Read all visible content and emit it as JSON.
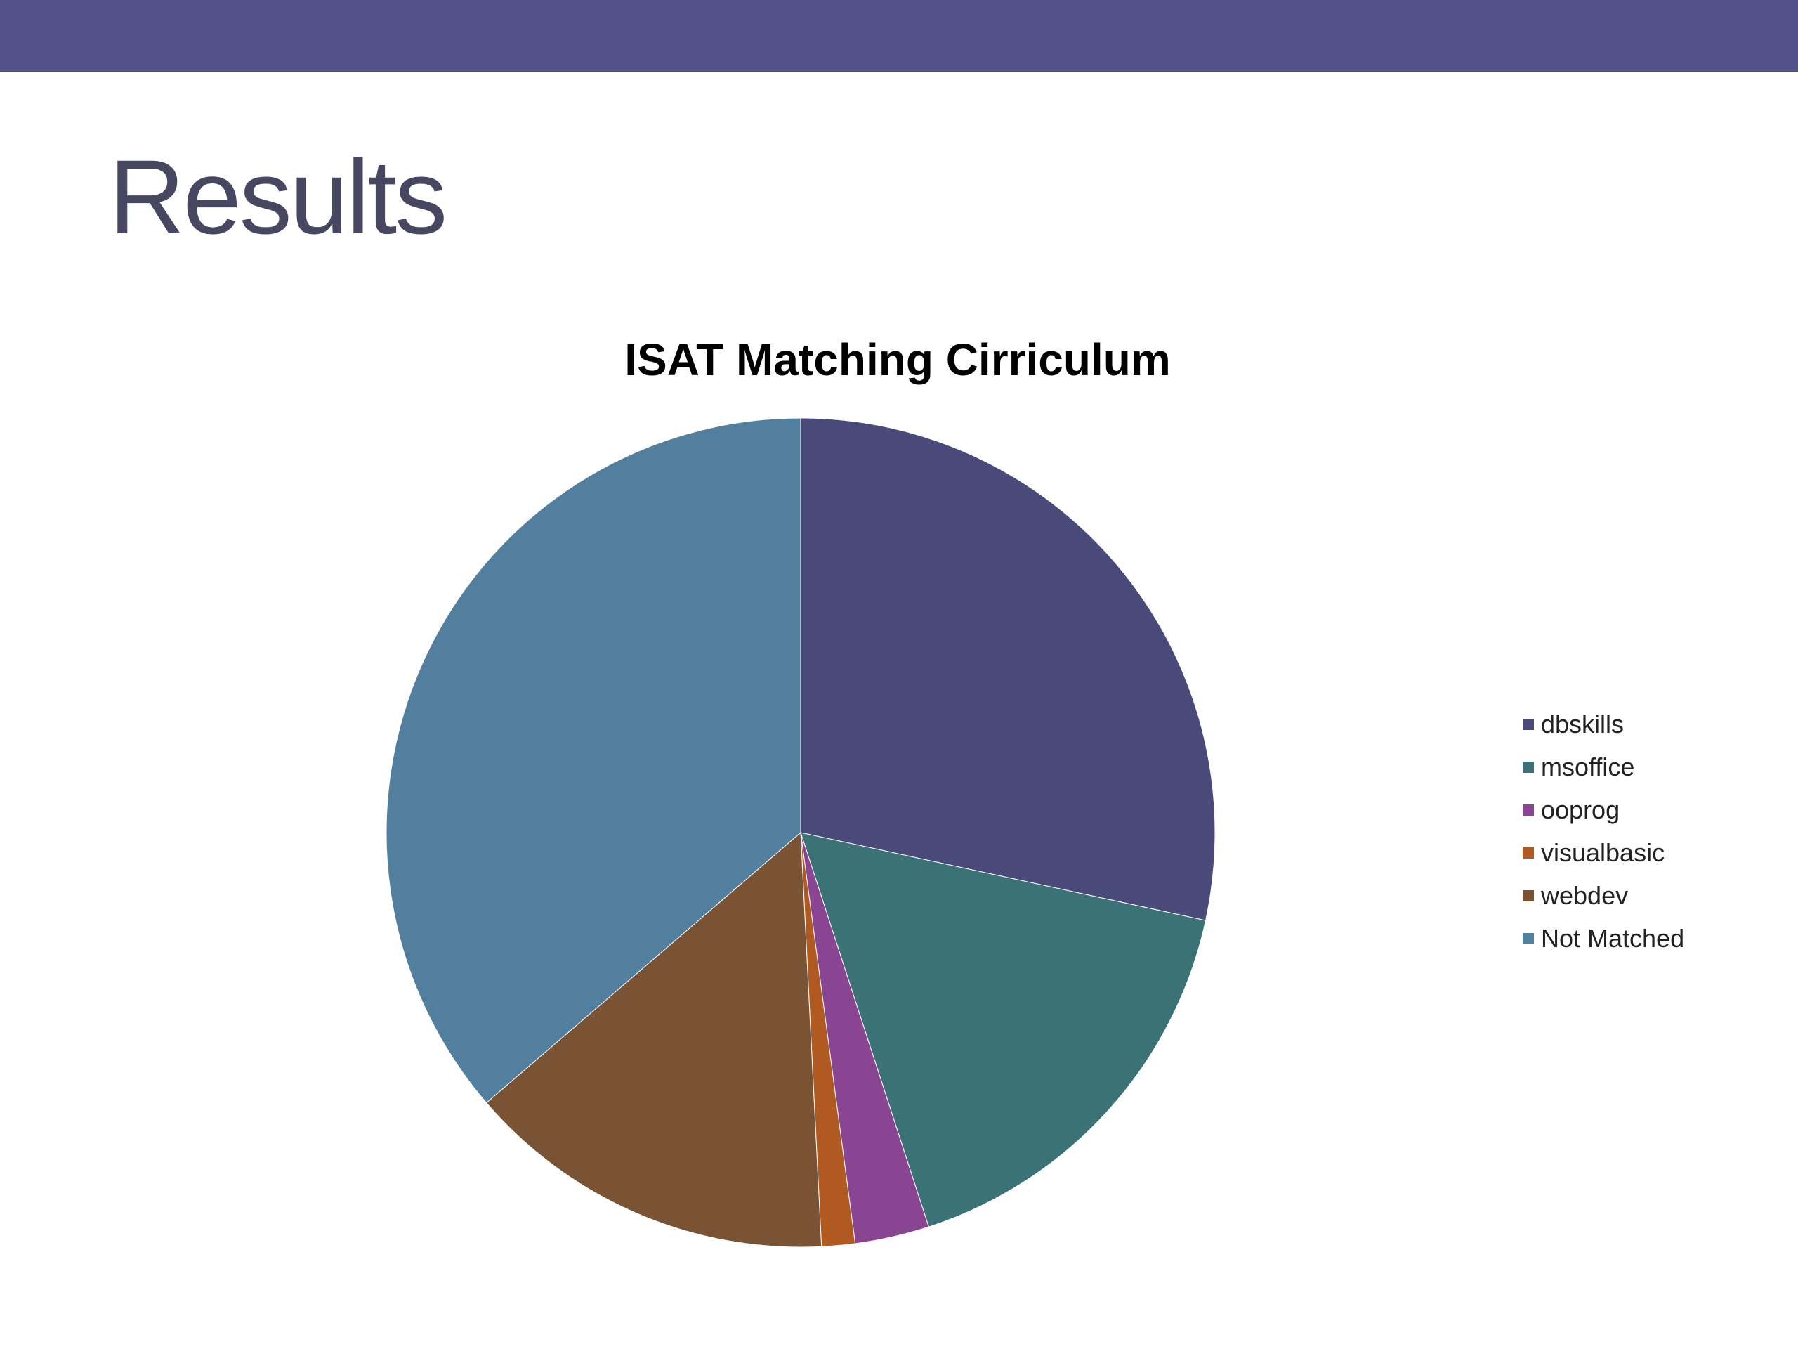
{
  "slide": {
    "title": "Results",
    "top_bar_color": "#54518a",
    "title_color": "#474761"
  },
  "chart_data": {
    "type": "pie",
    "title": "ISAT Matching Cirriculum",
    "legend_position": "right",
    "start_angle_deg": 0,
    "direction": "clockwise",
    "slices": [
      {
        "label": "dbskills",
        "value": 28.4,
        "color": "#4a4a7a"
      },
      {
        "label": "msoffice",
        "value": 16.6,
        "color": "#3a7276"
      },
      {
        "label": "ooprog",
        "value": 2.9,
        "color": "#8a4592"
      },
      {
        "label": "visualbasic",
        "value": 1.3,
        "color": "#b05a22"
      },
      {
        "label": "webdev",
        "value": 14.5,
        "color": "#7a5234"
      },
      {
        "label": "Not Matched",
        "value": 36.3,
        "color": "#527f9d"
      }
    ]
  }
}
